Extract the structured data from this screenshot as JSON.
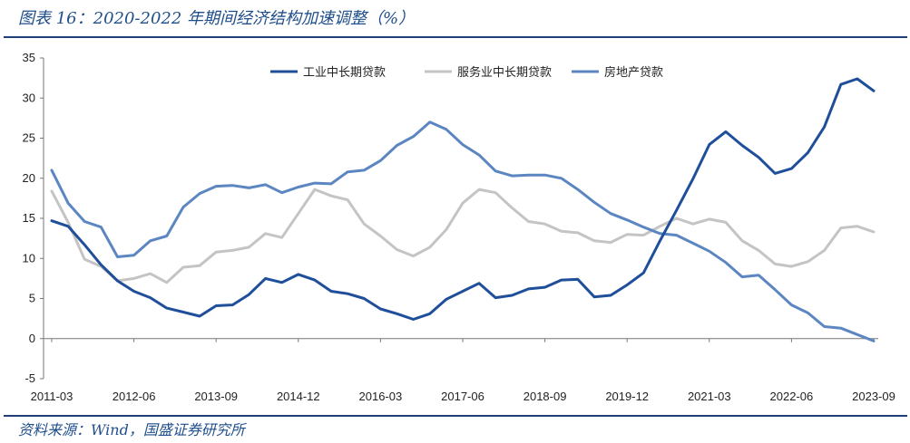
{
  "header": {
    "title": "图表 16：2020-2022 年期间经济结构加速调整（%）"
  },
  "footer": {
    "source": "资料来源：Wind，国盛证券研究所"
  },
  "chart_data": {
    "type": "line",
    "title": "图表 16：2020-2022 年期间经济结构加速调整（%）",
    "xlabel": "",
    "ylabel": "",
    "ylim": [
      -5,
      35
    ],
    "yticks": [
      -5,
      0,
      5,
      10,
      15,
      20,
      25,
      30,
      35
    ],
    "xticks": [
      "2011-03",
      "2012-06",
      "2013-09",
      "2014-12",
      "2016-03",
      "2017-06",
      "2018-09",
      "2019-12",
      "2021-03",
      "2022-06",
      "2023-09"
    ],
    "x": [
      "2011-03",
      "2011-06",
      "2011-09",
      "2011-12",
      "2012-03",
      "2012-06",
      "2012-09",
      "2012-12",
      "2013-03",
      "2013-06",
      "2013-09",
      "2013-12",
      "2014-03",
      "2014-06",
      "2014-09",
      "2014-12",
      "2015-03",
      "2015-06",
      "2015-09",
      "2015-12",
      "2016-03",
      "2016-06",
      "2016-09",
      "2016-12",
      "2017-03",
      "2017-06",
      "2017-09",
      "2017-12",
      "2018-03",
      "2018-06",
      "2018-09",
      "2018-12",
      "2019-03",
      "2019-06",
      "2019-09",
      "2019-12",
      "2020-03",
      "2020-06",
      "2020-09",
      "2020-12",
      "2021-03",
      "2021-06",
      "2021-09",
      "2021-12",
      "2022-03",
      "2022-06",
      "2022-09",
      "2022-12",
      "2023-03",
      "2023-06",
      "2023-09"
    ],
    "grid": false,
    "legend_position": "top",
    "series": [
      {
        "name": "工业中长期贷款",
        "color": "#1f4e9a",
        "values": [
          14.7,
          14.0,
          11.7,
          9.2,
          7.2,
          5.9,
          5.1,
          3.8,
          3.3,
          2.8,
          4.1,
          4.2,
          5.5,
          7.5,
          7.0,
          8.0,
          7.3,
          5.9,
          5.6,
          5.0,
          3.7,
          3.1,
          2.4,
          3.1,
          4.9,
          5.9,
          6.9,
          5.1,
          5.4,
          6.2,
          6.4,
          7.3,
          7.4,
          5.2,
          5.4,
          6.7,
          8.2,
          12.2,
          16.0,
          19.9,
          24.2,
          25.8,
          24.1,
          22.6,
          20.6,
          21.2,
          23.2,
          26.4,
          31.7,
          32.4,
          30.9
        ]
      },
      {
        "name": "服务业中长期贷款",
        "color": "#c4c4c4",
        "values": [
          18.4,
          14.5,
          9.9,
          9.0,
          7.2,
          7.5,
          8.1,
          7.0,
          8.9,
          9.1,
          10.8,
          11.0,
          11.4,
          13.1,
          12.6,
          15.6,
          18.6,
          17.8,
          17.3,
          14.3,
          12.8,
          11.1,
          10.3,
          11.4,
          13.6,
          16.9,
          18.6,
          18.2,
          16.3,
          14.6,
          14.3,
          13.4,
          13.2,
          12.2,
          12.0,
          13.0,
          12.9,
          14.0,
          15.0,
          14.3,
          14.9,
          14.5,
          12.2,
          11.0,
          9.3,
          9.0,
          9.6,
          11.0,
          13.8,
          14.0,
          13.3
        ]
      },
      {
        "name": "房地产贷款",
        "color": "#5b86c2",
        "values": [
          21.0,
          16.9,
          14.6,
          13.9,
          10.2,
          10.4,
          12.2,
          12.8,
          16.4,
          18.1,
          19.0,
          19.1,
          18.8,
          19.2,
          18.2,
          18.9,
          19.4,
          19.3,
          20.8,
          21.0,
          22.2,
          24.1,
          25.2,
          27.0,
          26.1,
          24.2,
          22.9,
          20.9,
          20.3,
          20.4,
          20.4,
          20.0,
          18.6,
          17.0,
          15.6,
          14.8,
          13.9,
          13.1,
          12.9,
          11.9,
          10.9,
          9.5,
          7.7,
          7.9,
          6.1,
          4.2,
          3.2,
          1.5,
          1.3,
          0.5,
          -0.3
        ]
      }
    ]
  }
}
